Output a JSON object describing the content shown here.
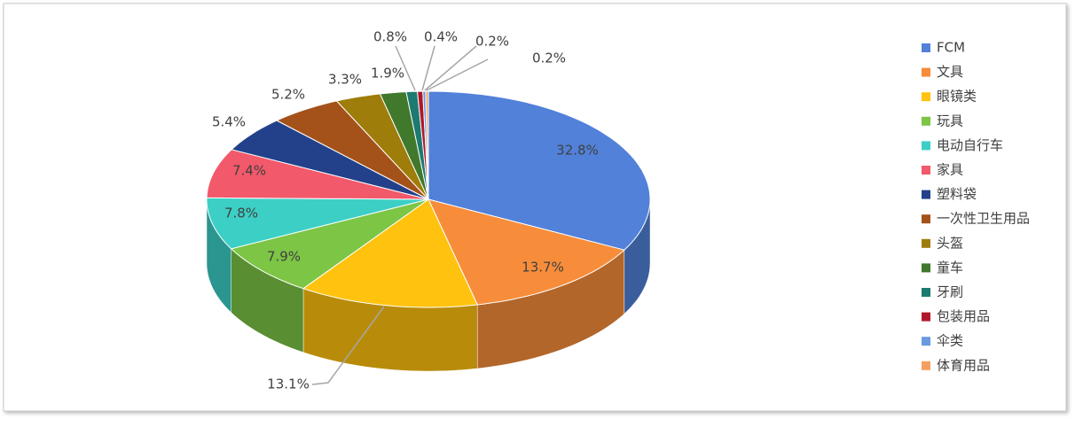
{
  "chart_data": {
    "type": "pie3d",
    "categories": [
      "FCM",
      "文具",
      "眼镜类",
      "玩具",
      "电动自行车",
      "家具",
      "塑料袋",
      "一次性卫生用品",
      "头盔",
      "童车",
      "牙刷",
      "包装用品",
      "伞类",
      "体育用品"
    ],
    "values": [
      32.8,
      13.7,
      13.1,
      7.9,
      7.8,
      7.4,
      5.4,
      5.2,
      3.3,
      1.9,
      0.8,
      0.4,
      0.2,
      0.2
    ],
    "value_labels": [
      "32.8%",
      "13.7%",
      "13.1%",
      "7.9%",
      "7.8%",
      "7.4%",
      "5.4%",
      "5.2%",
      "3.3%",
      "1.9%",
      "0.8%",
      "0.4%",
      "0.2%",
      "0.2%"
    ],
    "colors": [
      "#5181d9",
      "#f78d3a",
      "#ffc20e",
      "#7cc545",
      "#3ccfc6",
      "#f2596a",
      "#22418a",
      "#a4521a",
      "#9e7d0a",
      "#40782c",
      "#1d7a70",
      "#b0182a",
      "#6a9ae0",
      "#f5a060"
    ],
    "legend": "right"
  }
}
